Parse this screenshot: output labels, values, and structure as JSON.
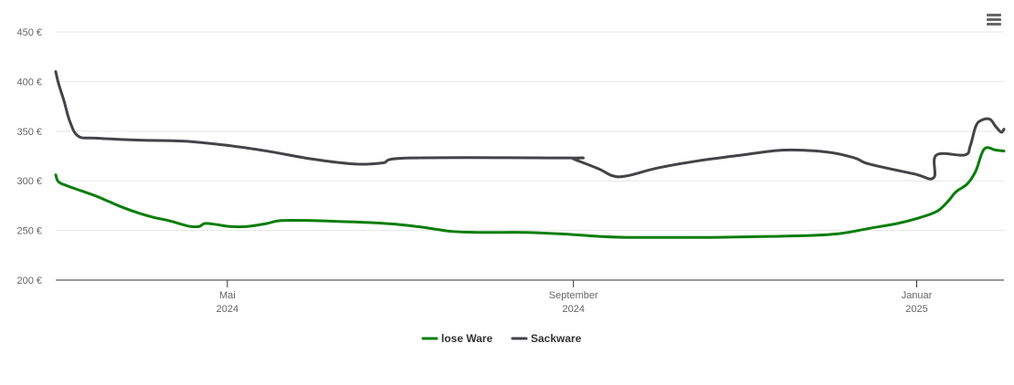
{
  "chart_data": {
    "type": "line",
    "title": "",
    "xlabel": "",
    "ylabel": "",
    "ylim": [
      200,
      450
    ],
    "y_ticks": [
      200,
      250,
      300,
      350,
      400,
      450
    ],
    "y_unit": "€",
    "xlim": [
      "2024-03-01",
      "2025-02-01"
    ],
    "x_ticks": [
      {
        "date": "2024-05-01",
        "label": "Mai",
        "year": "2024"
      },
      {
        "date": "2024-09-01",
        "label": "September",
        "year": "2024"
      },
      {
        "date": "2025-01-01",
        "label": "Januar",
        "year": "2025"
      }
    ],
    "grid": true,
    "legend_position": "bottom-center",
    "series": [
      {
        "name": "lose Ware",
        "color": "#0a7d0a",
        "points": [
          [
            "2024-03-01",
            306
          ],
          [
            "2024-03-02",
            299
          ],
          [
            "2024-03-05",
            295
          ],
          [
            "2024-03-10",
            290
          ],
          [
            "2024-03-15",
            285
          ],
          [
            "2024-03-20",
            279
          ],
          [
            "2024-03-25",
            273
          ],
          [
            "2024-03-31",
            267
          ],
          [
            "2024-04-05",
            263
          ],
          [
            "2024-04-10",
            260
          ],
          [
            "2024-04-15",
            256
          ],
          [
            "2024-04-18",
            254
          ],
          [
            "2024-04-21",
            254
          ],
          [
            "2024-04-23",
            257
          ],
          [
            "2024-04-27",
            256
          ],
          [
            "2024-05-02",
            254
          ],
          [
            "2024-05-08",
            254
          ],
          [
            "2024-05-15",
            257
          ],
          [
            "2024-05-20",
            260
          ],
          [
            "2024-05-31",
            260
          ],
          [
            "2024-06-10",
            259
          ],
          [
            "2024-06-20",
            258
          ],
          [
            "2024-07-01",
            256
          ],
          [
            "2024-07-10",
            253
          ],
          [
            "2024-07-20",
            249
          ],
          [
            "2024-07-31",
            248
          ],
          [
            "2024-08-15",
            248
          ],
          [
            "2024-08-31",
            246
          ],
          [
            "2024-09-10",
            244
          ],
          [
            "2024-09-20",
            243
          ],
          [
            "2024-10-01",
            243
          ],
          [
            "2024-10-20",
            243
          ],
          [
            "2024-11-10",
            244
          ],
          [
            "2024-11-25",
            245
          ],
          [
            "2024-12-05",
            247
          ],
          [
            "2024-12-15",
            252
          ],
          [
            "2024-12-25",
            257
          ],
          [
            "2025-01-01",
            262
          ],
          [
            "2025-01-08",
            269
          ],
          [
            "2025-01-12",
            279
          ],
          [
            "2025-01-15",
            289
          ],
          [
            "2025-01-19",
            297
          ],
          [
            "2025-01-22",
            310
          ],
          [
            "2025-01-25",
            332
          ],
          [
            "2025-01-29",
            331
          ],
          [
            "2025-02-01",
            330
          ]
        ]
      },
      {
        "name": "Sackware",
        "color": "#434348",
        "points": [
          [
            "2024-03-01",
            410
          ],
          [
            "2024-03-02",
            398
          ],
          [
            "2024-03-04",
            380
          ],
          [
            "2024-03-06",
            360
          ],
          [
            "2024-03-09",
            345
          ],
          [
            "2024-03-15",
            343
          ],
          [
            "2024-03-31",
            341
          ],
          [
            "2024-04-15",
            340
          ],
          [
            "2024-04-30",
            336
          ],
          [
            "2024-05-15",
            330
          ],
          [
            "2024-05-31",
            322
          ],
          [
            "2024-06-15",
            317
          ],
          [
            "2024-06-25",
            318
          ],
          [
            "2024-07-05",
            323
          ],
          [
            "2024-08-31",
            323
          ],
          [
            "2024-09-01",
            322
          ],
          [
            "2024-09-10",
            312
          ],
          [
            "2024-09-15",
            305
          ],
          [
            "2024-09-20",
            305
          ],
          [
            "2024-10-01",
            313
          ],
          [
            "2024-10-15",
            320
          ],
          [
            "2024-10-31",
            326
          ],
          [
            "2024-11-15",
            331
          ],
          [
            "2024-11-30",
            329
          ],
          [
            "2024-12-10",
            323
          ],
          [
            "2024-12-15",
            317
          ],
          [
            "2024-12-31",
            307
          ],
          [
            "2025-01-07",
            303
          ],
          [
            "2025-01-08",
            326
          ],
          [
            "2025-01-18",
            326
          ],
          [
            "2025-01-20",
            335
          ],
          [
            "2025-01-22",
            355
          ],
          [
            "2025-01-24",
            361
          ],
          [
            "2025-01-27",
            362
          ],
          [
            "2025-01-29",
            355
          ],
          [
            "2025-01-31",
            349
          ],
          [
            "2025-02-01",
            352
          ]
        ]
      }
    ]
  },
  "menu": {
    "icon": "hamburger-menu-icon"
  }
}
